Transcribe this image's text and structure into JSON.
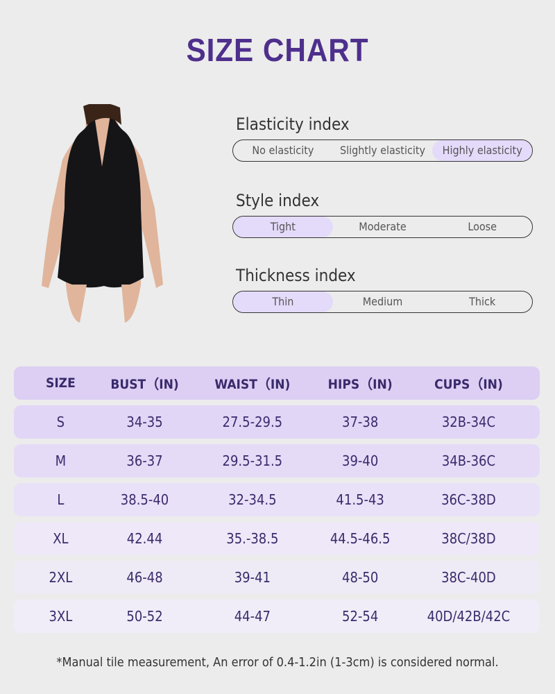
{
  "title": "SIZE CHART",
  "indices": [
    {
      "label": "Elasticity index",
      "options": [
        "No elasticity",
        "Slightly elasticity",
        "Highly elasticity"
      ],
      "selected": 2
    },
    {
      "label": "Style index",
      "options": [
        "Tight",
        "Moderate",
        "Loose"
      ],
      "selected": 0
    },
    {
      "label": "Thickness index",
      "options": [
        "Thin",
        "Medium",
        "Thick"
      ],
      "selected": 0
    }
  ],
  "table": {
    "headers": [
      "SIZE",
      "BUST（IN)",
      "WAIST（IN)",
      "HIPS（IN)",
      "CUPS（IN)"
    ],
    "rows": [
      [
        "S",
        "34-35",
        "27.5-29.5",
        "37-38",
        "32B-34C"
      ],
      [
        "M",
        "36-37",
        "29.5-31.5",
        "39-40",
        "34B-36C"
      ],
      [
        "L",
        "38.5-40",
        "32-34.5",
        "41.5-43",
        "36C-38D"
      ],
      [
        "XL",
        "42.44",
        "35.-38.5",
        "44.5-46.5",
        "38C/38D"
      ],
      [
        "2XL",
        "46-48",
        "39-41",
        "48-50",
        "38C-40D"
      ],
      [
        "3XL",
        "50-52",
        "44-47",
        "52-54",
        "40D/42B/42C"
      ]
    ]
  },
  "note": "*Manual tile measurement, An error of 0.4-1.2in (1-3cm) is considered normal.",
  "colors": {
    "title": "#4e2f8c",
    "header": "#dccff3",
    "selected": "#e4dafa",
    "text": "#3a2a6b"
  }
}
